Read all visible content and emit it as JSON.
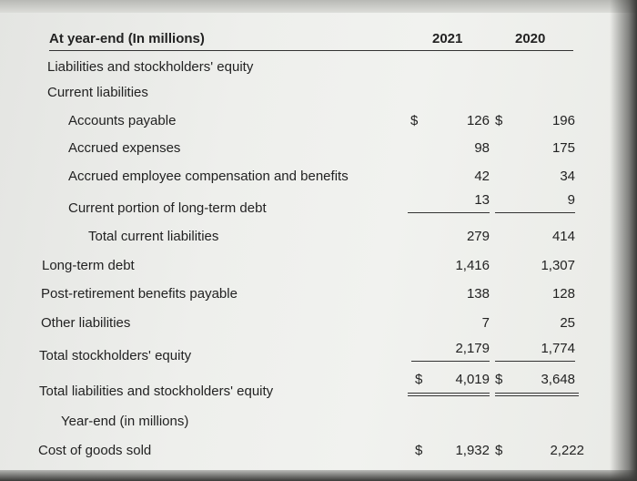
{
  "header": {
    "label": "At year-end (In millions)",
    "col_2021": "2021",
    "col_2020": "2020"
  },
  "section_title": "Liabilities and stockholders' equity",
  "subsection_title": "Current liabilities",
  "currency_symbol": "$",
  "rows": {
    "accounts_payable": {
      "label": "Accounts payable",
      "v2021": "126",
      "v2020": "196"
    },
    "accrued_expenses": {
      "label": "Accrued expenses",
      "v2021": "98",
      "v2020": "175"
    },
    "accrued_comp": {
      "label": "Accrued employee compensation and benefits",
      "v2021": "42",
      "v2020": "34"
    },
    "current_ltd": {
      "label": "Current portion of long-term debt",
      "v2021": "13",
      "v2020": "9"
    },
    "total_current": {
      "label": "Total current liabilities",
      "v2021": "279",
      "v2020": "414"
    },
    "long_term_debt": {
      "label": "Long-term debt",
      "v2021": "1,416",
      "v2020": "1,307"
    },
    "post_retirement": {
      "label": "Post-retirement benefits payable",
      "v2021": "138",
      "v2020": "128"
    },
    "other_liabilities": {
      "label": "Other liabilities",
      "v2021": "7",
      "v2020": "25"
    },
    "total_equity": {
      "label": "Total stockholders' equity",
      "v2021": "2,179",
      "v2020": "1,774"
    },
    "total_liab_equity": {
      "label": "Total liabilities and stockholders' equity",
      "v2021": "4,019",
      "v2020": "3,648"
    }
  },
  "second_header": "Year-end (in millions)",
  "cogs": {
    "label": "Cost of goods sold",
    "v2021": "1,932",
    "v2020": "2,222"
  }
}
